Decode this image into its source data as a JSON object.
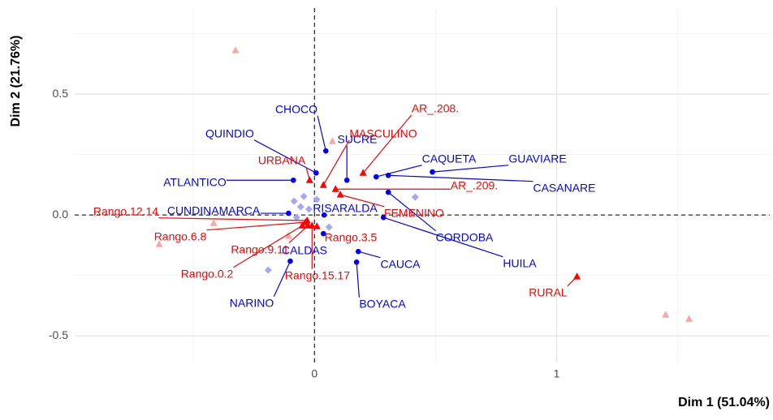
{
  "chart_data": {
    "type": "scatter",
    "xlabel": "Dim 1 (51.04%)",
    "ylabel": "Dim 2 (21.76%)",
    "xlim": [
      -0.99,
      1.88
    ],
    "ylim": [
      -0.61,
      0.856
    ],
    "xticks": [
      0,
      1
    ],
    "yticks": [
      -0.5,
      {
        "value": 0,
        "label": "0.0"
      },
      0.5
    ],
    "grid": true,
    "series": [
      {
        "color": "#0000ff",
        "marker": "circle",
        "labels": [
          "CHOCO",
          "QUINDIO",
          "SUCRE",
          "CAQUETA",
          "GUAVIARE",
          "CASANARE",
          "ATLANTICO",
          "CUNDINAMARCA",
          "RISARALDA",
          "CORDOBA",
          "HUILA",
          "CALDAS",
          "CAUCA",
          "BOYACA",
          "NARINO"
        ],
        "x": [
          0.047,
          0.007,
          0.134,
          0.255,
          0.487,
          0.305,
          -0.087,
          -0.107,
          0.04,
          0.305,
          0.285,
          0.037,
          0.181,
          0.174,
          -0.1
        ],
        "values": [
          0.265,
          0.174,
          0.144,
          0.158,
          0.178,
          0.164,
          0.144,
          0.007,
          0.0,
          0.094,
          -0.01,
          -0.077,
          -0.151,
          -0.195,
          -0.191
        ]
      },
      {
        "color": "#ff0000",
        "marker": "triangle",
        "labels": [
          "AR_.208.",
          "MASCULINO",
          "URBANA",
          "AR_.209.",
          "FEMENINO",
          "Rango.12.14",
          "Rango.6.8",
          "Rango.9.11",
          "Rango.0.2",
          "Rango.15.17",
          "Rango.3.5",
          "RURAL"
        ],
        "x": [
          0.201,
          0.037,
          -0.02,
          0.087,
          0.107,
          -0.03,
          -0.037,
          -0.027,
          -0.05,
          -0.01,
          0.01,
          1.084
        ],
        "values": [
          0.174,
          0.124,
          0.144,
          0.107,
          0.084,
          -0.023,
          -0.03,
          -0.044,
          -0.044,
          -0.044,
          -0.047,
          -0.255
        ]
      },
      {
        "color": "#a7a7f0",
        "marker": "diamond",
        "x": [
          -0.044,
          -0.084,
          -0.057,
          -0.023,
          0.06,
          -0.191,
          0.416,
          0.01,
          -0.074
        ],
        "values": [
          0.077,
          0.057,
          0.034,
          0.024,
          -0.05,
          -0.228,
          0.074,
          0.064,
          -0.01
        ]
      },
      {
        "color": "#f5a8a8",
        "marker": "triangle",
        "x": [
          -0.326,
          0.074,
          -0.416,
          -0.641,
          1.45,
          1.547,
          -0.107
        ],
        "values": [
          0.681,
          0.305,
          -0.034,
          -0.121,
          -0.413,
          -0.43,
          -0.087
        ]
      }
    ]
  }
}
